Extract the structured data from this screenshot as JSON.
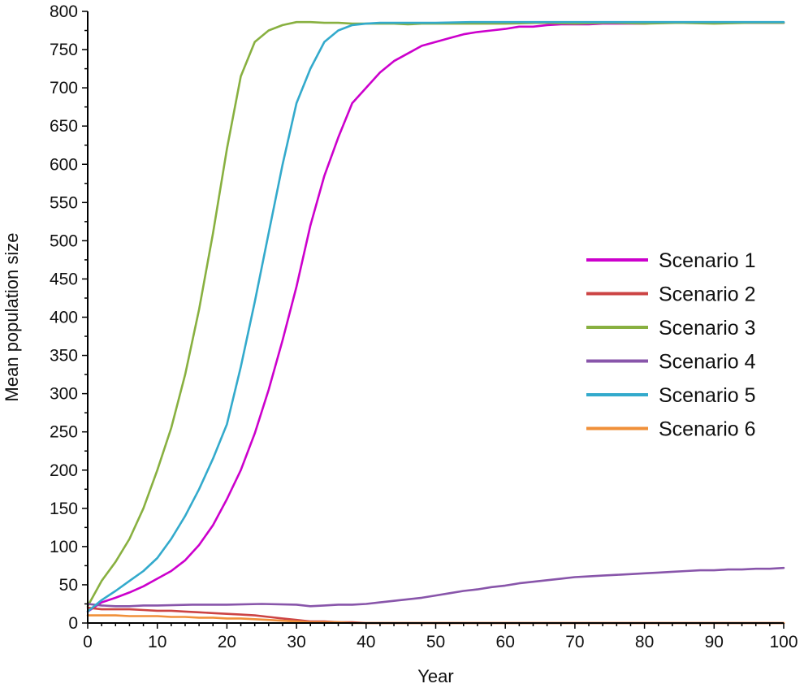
{
  "chart_data": {
    "type": "line",
    "title": "",
    "xlabel": "Year",
    "ylabel": "Mean population size",
    "xlim": [
      0,
      100
    ],
    "ylim": [
      0,
      800
    ],
    "xticks": [
      0,
      10,
      20,
      30,
      40,
      50,
      60,
      70,
      80,
      90,
      100
    ],
    "yticks": [
      0,
      50,
      100,
      150,
      200,
      250,
      300,
      350,
      400,
      450,
      500,
      550,
      600,
      650,
      700,
      750,
      800
    ],
    "grid": false,
    "legend_position": "right",
    "series": [
      {
        "name": "Scenario 1",
        "color": "#cc00cc",
        "x": [
          0,
          2,
          4,
          6,
          8,
          10,
          12,
          14,
          16,
          18,
          20,
          22,
          24,
          26,
          28,
          30,
          32,
          34,
          36,
          38,
          40,
          42,
          44,
          46,
          48,
          50,
          52,
          54,
          56,
          58,
          60,
          62,
          64,
          66,
          68,
          70,
          72,
          74,
          76,
          78,
          80,
          82,
          84,
          86,
          88,
          90,
          92,
          94,
          96,
          98,
          100
        ],
        "y": [
          15,
          27,
          33,
          40,
          48,
          58,
          68,
          82,
          102,
          128,
          162,
          200,
          248,
          305,
          370,
          440,
          520,
          585,
          635,
          680,
          700,
          720,
          735,
          745,
          755,
          760,
          765,
          770,
          773,
          775,
          777,
          780,
          780,
          782,
          783,
          783,
          783,
          784,
          784,
          784,
          784,
          785,
          785,
          785,
          785,
          785,
          785,
          785,
          785,
          785,
          785
        ]
      },
      {
        "name": "Scenario 2",
        "color": "#cc4444",
        "x": [
          0,
          2,
          4,
          6,
          8,
          10,
          12,
          14,
          16,
          18,
          20,
          22,
          24,
          26,
          28,
          30,
          32,
          34,
          36,
          38,
          40,
          50,
          60,
          70,
          80,
          90,
          100
        ],
        "y": [
          20,
          18,
          18,
          18,
          17,
          16,
          16,
          15,
          14,
          13,
          12,
          11,
          10,
          8,
          6,
          4,
          2,
          2,
          1,
          1,
          0,
          0,
          0,
          0,
          0,
          0,
          0
        ]
      },
      {
        "name": "Scenario 3",
        "color": "#88b040",
        "x": [
          0,
          2,
          4,
          6,
          8,
          10,
          12,
          14,
          16,
          18,
          20,
          22,
          24,
          26,
          28,
          30,
          32,
          34,
          36,
          38,
          40,
          42,
          44,
          46,
          48,
          50,
          55,
          60,
          65,
          70,
          75,
          80,
          85,
          90,
          95,
          100
        ],
        "y": [
          22,
          55,
          80,
          110,
          150,
          200,
          255,
          325,
          410,
          510,
          620,
          715,
          760,
          775,
          782,
          786,
          786,
          785,
          785,
          784,
          784,
          784,
          784,
          783,
          784,
          784,
          784,
          784,
          785,
          784,
          785,
          784,
          785,
          784,
          785,
          785
        ]
      },
      {
        "name": "Scenario 4",
        "color": "#8855aa",
        "x": [
          0,
          2,
          4,
          6,
          8,
          10,
          15,
          20,
          25,
          30,
          32,
          34,
          36,
          38,
          40,
          42,
          44,
          46,
          48,
          50,
          52,
          54,
          56,
          58,
          60,
          62,
          64,
          66,
          68,
          70,
          72,
          74,
          76,
          78,
          80,
          82,
          84,
          86,
          88,
          90,
          92,
          94,
          96,
          98,
          100
        ],
        "y": [
          25,
          23,
          22,
          22,
          23,
          23,
          24,
          24,
          25,
          24,
          22,
          23,
          24,
          24,
          25,
          27,
          29,
          31,
          33,
          36,
          39,
          42,
          44,
          47,
          49,
          52,
          54,
          56,
          58,
          60,
          61,
          62,
          63,
          64,
          65,
          66,
          67,
          68,
          69,
          69,
          70,
          70,
          71,
          71,
          72
        ]
      },
      {
        "name": "Scenario 5",
        "color": "#33aacc",
        "x": [
          0,
          2,
          4,
          6,
          8,
          10,
          12,
          14,
          16,
          18,
          20,
          22,
          24,
          26,
          28,
          30,
          32,
          34,
          36,
          38,
          40,
          42,
          44,
          46,
          48,
          50,
          55,
          60,
          65,
          70,
          75,
          80,
          85,
          90,
          95,
          100
        ],
        "y": [
          15,
          30,
          42,
          55,
          68,
          85,
          110,
          140,
          175,
          215,
          260,
          335,
          420,
          510,
          600,
          680,
          725,
          760,
          775,
          782,
          784,
          785,
          785,
          785,
          785,
          785,
          786,
          786,
          786,
          786,
          786,
          786,
          786,
          786,
          786,
          786
        ]
      },
      {
        "name": "Scenario 6",
        "color": "#f0903a",
        "x": [
          0,
          2,
          4,
          6,
          8,
          10,
          12,
          14,
          16,
          18,
          20,
          22,
          24,
          26,
          28,
          30,
          32,
          34,
          36,
          38,
          40,
          50,
          60,
          70,
          80,
          90,
          100
        ],
        "y": [
          10,
          10,
          10,
          9,
          9,
          9,
          8,
          8,
          7,
          7,
          6,
          6,
          5,
          4,
          3,
          2,
          1,
          1,
          1,
          0,
          0,
          0,
          0,
          0,
          0,
          0,
          0
        ]
      }
    ]
  }
}
